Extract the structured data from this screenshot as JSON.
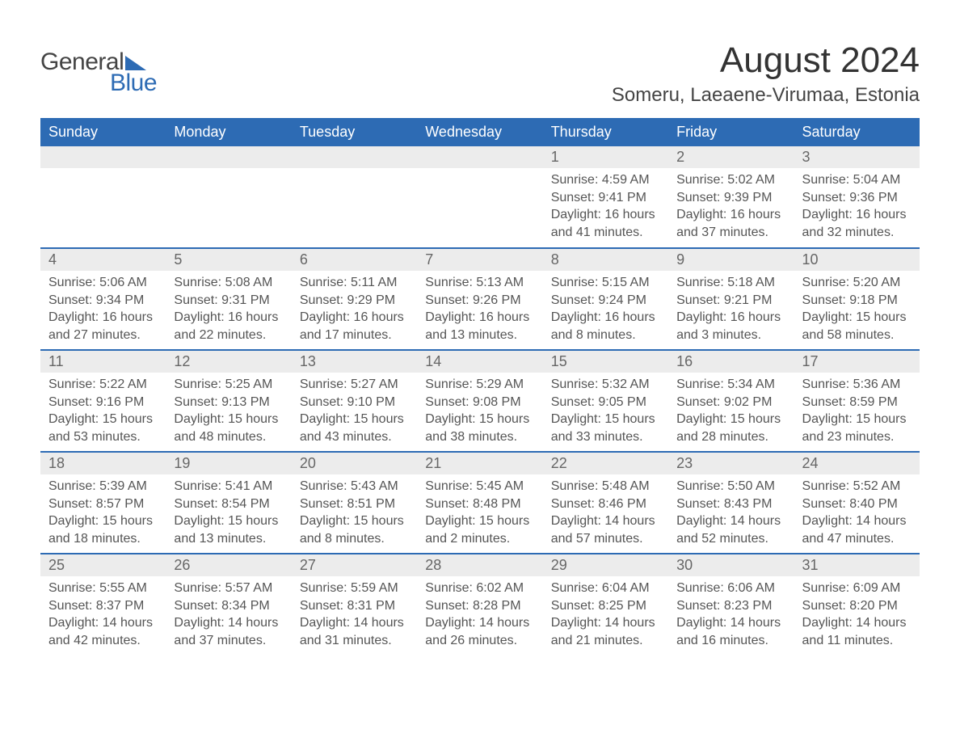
{
  "logo": {
    "text_general": "General",
    "text_blue": "Blue",
    "flag_color": "#2d6bb4"
  },
  "header": {
    "month_title": "August 2024",
    "location": "Someru, Laeaene-Virumaa, Estonia"
  },
  "weekdays": [
    "Sunday",
    "Monday",
    "Tuesday",
    "Wednesday",
    "Thursday",
    "Friday",
    "Saturday"
  ],
  "colors": {
    "header_bg": "#2d6bb4",
    "header_text": "#ffffff",
    "daynum_bg": "#ececec",
    "body_text": "#555555",
    "border": "#2d6bb4",
    "page_bg": "#ffffff"
  },
  "typography": {
    "month_title_fontsize": 44,
    "location_fontsize": 24,
    "weekday_fontsize": 18,
    "daynum_fontsize": 18,
    "body_fontsize": 16
  },
  "weeks": [
    [
      {
        "empty": true
      },
      {
        "empty": true
      },
      {
        "empty": true
      },
      {
        "empty": true
      },
      {
        "num": "1",
        "sunrise": "Sunrise: 4:59 AM",
        "sunset": "Sunset: 9:41 PM",
        "daylight1": "Daylight: 16 hours",
        "daylight2": "and 41 minutes."
      },
      {
        "num": "2",
        "sunrise": "Sunrise: 5:02 AM",
        "sunset": "Sunset: 9:39 PM",
        "daylight1": "Daylight: 16 hours",
        "daylight2": "and 37 minutes."
      },
      {
        "num": "3",
        "sunrise": "Sunrise: 5:04 AM",
        "sunset": "Sunset: 9:36 PM",
        "daylight1": "Daylight: 16 hours",
        "daylight2": "and 32 minutes."
      }
    ],
    [
      {
        "num": "4",
        "sunrise": "Sunrise: 5:06 AM",
        "sunset": "Sunset: 9:34 PM",
        "daylight1": "Daylight: 16 hours",
        "daylight2": "and 27 minutes."
      },
      {
        "num": "5",
        "sunrise": "Sunrise: 5:08 AM",
        "sunset": "Sunset: 9:31 PM",
        "daylight1": "Daylight: 16 hours",
        "daylight2": "and 22 minutes."
      },
      {
        "num": "6",
        "sunrise": "Sunrise: 5:11 AM",
        "sunset": "Sunset: 9:29 PM",
        "daylight1": "Daylight: 16 hours",
        "daylight2": "and 17 minutes."
      },
      {
        "num": "7",
        "sunrise": "Sunrise: 5:13 AM",
        "sunset": "Sunset: 9:26 PM",
        "daylight1": "Daylight: 16 hours",
        "daylight2": "and 13 minutes."
      },
      {
        "num": "8",
        "sunrise": "Sunrise: 5:15 AM",
        "sunset": "Sunset: 9:24 PM",
        "daylight1": "Daylight: 16 hours",
        "daylight2": "and 8 minutes."
      },
      {
        "num": "9",
        "sunrise": "Sunrise: 5:18 AM",
        "sunset": "Sunset: 9:21 PM",
        "daylight1": "Daylight: 16 hours",
        "daylight2": "and 3 minutes."
      },
      {
        "num": "10",
        "sunrise": "Sunrise: 5:20 AM",
        "sunset": "Sunset: 9:18 PM",
        "daylight1": "Daylight: 15 hours",
        "daylight2": "and 58 minutes."
      }
    ],
    [
      {
        "num": "11",
        "sunrise": "Sunrise: 5:22 AM",
        "sunset": "Sunset: 9:16 PM",
        "daylight1": "Daylight: 15 hours",
        "daylight2": "and 53 minutes."
      },
      {
        "num": "12",
        "sunrise": "Sunrise: 5:25 AM",
        "sunset": "Sunset: 9:13 PM",
        "daylight1": "Daylight: 15 hours",
        "daylight2": "and 48 minutes."
      },
      {
        "num": "13",
        "sunrise": "Sunrise: 5:27 AM",
        "sunset": "Sunset: 9:10 PM",
        "daylight1": "Daylight: 15 hours",
        "daylight2": "and 43 minutes."
      },
      {
        "num": "14",
        "sunrise": "Sunrise: 5:29 AM",
        "sunset": "Sunset: 9:08 PM",
        "daylight1": "Daylight: 15 hours",
        "daylight2": "and 38 minutes."
      },
      {
        "num": "15",
        "sunrise": "Sunrise: 5:32 AM",
        "sunset": "Sunset: 9:05 PM",
        "daylight1": "Daylight: 15 hours",
        "daylight2": "and 33 minutes."
      },
      {
        "num": "16",
        "sunrise": "Sunrise: 5:34 AM",
        "sunset": "Sunset: 9:02 PM",
        "daylight1": "Daylight: 15 hours",
        "daylight2": "and 28 minutes."
      },
      {
        "num": "17",
        "sunrise": "Sunrise: 5:36 AM",
        "sunset": "Sunset: 8:59 PM",
        "daylight1": "Daylight: 15 hours",
        "daylight2": "and 23 minutes."
      }
    ],
    [
      {
        "num": "18",
        "sunrise": "Sunrise: 5:39 AM",
        "sunset": "Sunset: 8:57 PM",
        "daylight1": "Daylight: 15 hours",
        "daylight2": "and 18 minutes."
      },
      {
        "num": "19",
        "sunrise": "Sunrise: 5:41 AM",
        "sunset": "Sunset: 8:54 PM",
        "daylight1": "Daylight: 15 hours",
        "daylight2": "and 13 minutes."
      },
      {
        "num": "20",
        "sunrise": "Sunrise: 5:43 AM",
        "sunset": "Sunset: 8:51 PM",
        "daylight1": "Daylight: 15 hours",
        "daylight2": "and 8 minutes."
      },
      {
        "num": "21",
        "sunrise": "Sunrise: 5:45 AM",
        "sunset": "Sunset: 8:48 PM",
        "daylight1": "Daylight: 15 hours",
        "daylight2": "and 2 minutes."
      },
      {
        "num": "22",
        "sunrise": "Sunrise: 5:48 AM",
        "sunset": "Sunset: 8:46 PM",
        "daylight1": "Daylight: 14 hours",
        "daylight2": "and 57 minutes."
      },
      {
        "num": "23",
        "sunrise": "Sunrise: 5:50 AM",
        "sunset": "Sunset: 8:43 PM",
        "daylight1": "Daylight: 14 hours",
        "daylight2": "and 52 minutes."
      },
      {
        "num": "24",
        "sunrise": "Sunrise: 5:52 AM",
        "sunset": "Sunset: 8:40 PM",
        "daylight1": "Daylight: 14 hours",
        "daylight2": "and 47 minutes."
      }
    ],
    [
      {
        "num": "25",
        "sunrise": "Sunrise: 5:55 AM",
        "sunset": "Sunset: 8:37 PM",
        "daylight1": "Daylight: 14 hours",
        "daylight2": "and 42 minutes."
      },
      {
        "num": "26",
        "sunrise": "Sunrise: 5:57 AM",
        "sunset": "Sunset: 8:34 PM",
        "daylight1": "Daylight: 14 hours",
        "daylight2": "and 37 minutes."
      },
      {
        "num": "27",
        "sunrise": "Sunrise: 5:59 AM",
        "sunset": "Sunset: 8:31 PM",
        "daylight1": "Daylight: 14 hours",
        "daylight2": "and 31 minutes."
      },
      {
        "num": "28",
        "sunrise": "Sunrise: 6:02 AM",
        "sunset": "Sunset: 8:28 PM",
        "daylight1": "Daylight: 14 hours",
        "daylight2": "and 26 minutes."
      },
      {
        "num": "29",
        "sunrise": "Sunrise: 6:04 AM",
        "sunset": "Sunset: 8:25 PM",
        "daylight1": "Daylight: 14 hours",
        "daylight2": "and 21 minutes."
      },
      {
        "num": "30",
        "sunrise": "Sunrise: 6:06 AM",
        "sunset": "Sunset: 8:23 PM",
        "daylight1": "Daylight: 14 hours",
        "daylight2": "and 16 minutes."
      },
      {
        "num": "31",
        "sunrise": "Sunrise: 6:09 AM",
        "sunset": "Sunset: 8:20 PM",
        "daylight1": "Daylight: 14 hours",
        "daylight2": "and 11 minutes."
      }
    ]
  ]
}
